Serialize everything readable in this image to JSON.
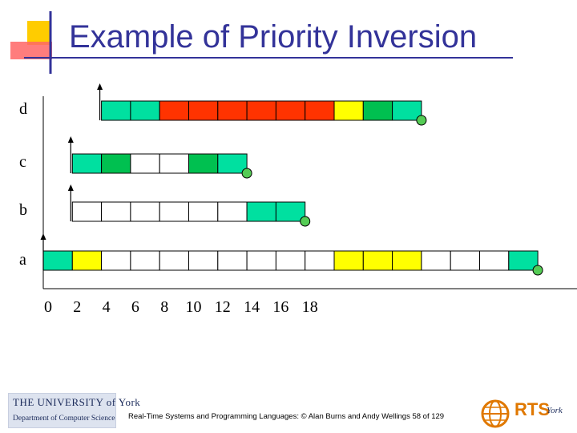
{
  "slide": {
    "title": "Example of Priority Inversion",
    "footer": "Real-Time Systems and Programming Languages: © Alan Burns and Andy Wellings 58 of 129",
    "logo_university_line1": "THE UNIVERSITY of York",
    "logo_university_line2": "Department of Computer Science",
    "logo_rts": "RTS",
    "logo_rts_york": "York"
  },
  "colors": {
    "title": "#333399",
    "executing": "#00e0a0",
    "executing_with_resource_Q": "#00c050",
    "executing_with_resource_V": "#ffff00",
    "blocked_in_red": "#ff3300",
    "preempted_empty": "#ffffff",
    "completion_marker": "#55cc55"
  },
  "timeline": {
    "ticks": [
      "0",
      "2",
      "4",
      "6",
      "8",
      "10",
      "12",
      "14",
      "16",
      "18"
    ]
  },
  "tasks": [
    {
      "name": "d",
      "release": 4,
      "slots": [
        "E",
        "E",
        "R",
        "R",
        "R",
        "R",
        "R",
        "R",
        "V",
        "Q",
        "E"
      ],
      "start": 4
    },
    {
      "name": "c",
      "release": 2,
      "slots": [
        "E",
        "Q",
        "W",
        "W",
        "Q",
        "E"
      ],
      "start": 2
    },
    {
      "name": "b",
      "release": 2,
      "slots": [
        "W",
        "W",
        "W",
        "W",
        "W",
        "W",
        "E",
        "E"
      ],
      "start": 2
    },
    {
      "name": "a",
      "release": 0,
      "slots": [
        "E",
        "V",
        "W",
        "W",
        "W",
        "W",
        "W",
        "W",
        "W",
        "W",
        "V",
        "V",
        "V",
        "W",
        "W",
        "W",
        "E"
      ],
      "start": 0
    }
  ]
}
